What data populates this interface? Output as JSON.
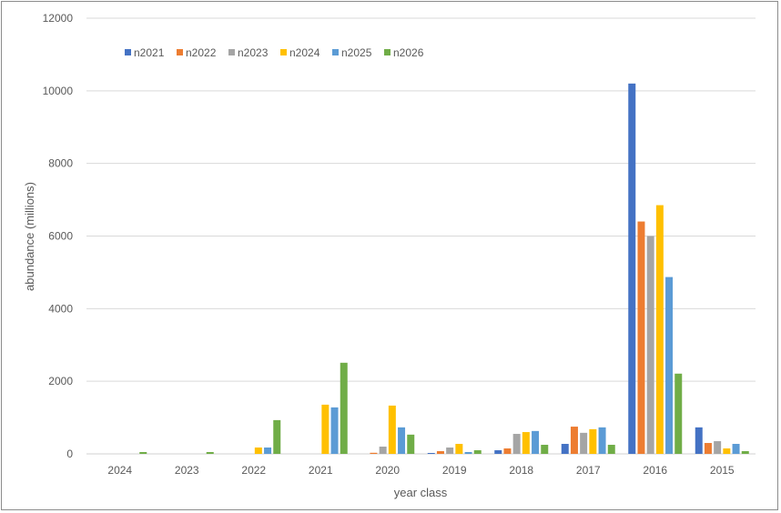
{
  "chart_data": {
    "type": "bar",
    "title": "",
    "xlabel": "year class",
    "ylabel": "abundance (millions)",
    "ylim": [
      0,
      12000
    ],
    "yticks": [
      0,
      2000,
      4000,
      6000,
      8000,
      10000,
      12000
    ],
    "grid": true,
    "legend_position": "top-left",
    "categories": [
      "2024",
      "2023",
      "2022",
      "2021",
      "2020",
      "2019",
      "2018",
      "2017",
      "2016",
      "2015"
    ],
    "series": [
      {
        "name": "n2021",
        "color": "#4472C4",
        "values": [
          0,
          0,
          0,
          0,
          0,
          25,
          100,
          275,
          10200,
          730
        ]
      },
      {
        "name": "n2022",
        "color": "#ED7D31",
        "values": [
          0,
          0,
          0,
          0,
          30,
          75,
          150,
          750,
          6400,
          300
        ]
      },
      {
        "name": "n2023",
        "color": "#A5A5A5",
        "values": [
          0,
          0,
          0,
          0,
          200,
          175,
          550,
          580,
          6000,
          350
        ]
      },
      {
        "name": "n2024",
        "color": "#FFC000",
        "values": [
          0,
          0,
          175,
          1355,
          1330,
          275,
          600,
          680,
          6850,
          150
        ]
      },
      {
        "name": "n2025",
        "color": "#5B9BD5",
        "values": [
          0,
          0,
          175,
          1280,
          730,
          50,
          630,
          730,
          4870,
          275
        ]
      },
      {
        "name": "n2026",
        "color": "#70AD47",
        "values": [
          50,
          50,
          930,
          2510,
          530,
          100,
          250,
          250,
          2210,
          75
        ]
      }
    ]
  }
}
